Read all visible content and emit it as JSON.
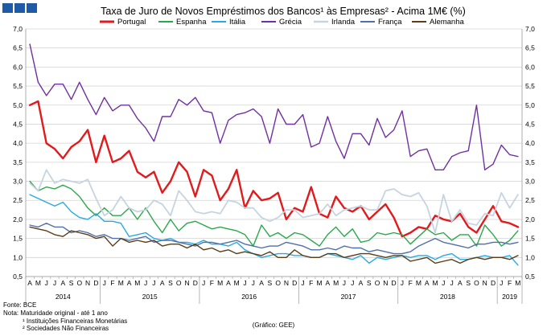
{
  "chart_data": {
    "type": "line",
    "title": "Taxa de Juro de Novos Empréstimos dos Bancos¹ às Empresas² - Acima 1M€ (%)",
    "ylim": [
      0.5,
      7.0
    ],
    "y_ticks": [
      "0,5",
      "1,0",
      "1,5",
      "2,0",
      "2,5",
      "3,0",
      "3,5",
      "4,0",
      "4,5",
      "5,0",
      "5,5",
      "6,0",
      "6,5",
      "7,0"
    ],
    "grid": true,
    "legend_position": "top",
    "month_labels": [
      "A",
      "M",
      "J",
      "J",
      "A",
      "S",
      "O",
      "N",
      "D",
      "J",
      "F",
      "M",
      "A",
      "M",
      "J",
      "J",
      "A",
      "S",
      "O",
      "N",
      "D",
      "J",
      "F",
      "M",
      "A",
      "M",
      "J",
      "J",
      "A",
      "S",
      "O",
      "N",
      "D",
      "J",
      "F",
      "M",
      "A",
      "M",
      "J",
      "J",
      "A",
      "S",
      "O",
      "N",
      "D",
      "J",
      "F",
      "M",
      "A",
      "M",
      "J",
      "J",
      "A",
      "S",
      "O",
      "N",
      "D",
      "J",
      "F",
      "M"
    ],
    "years": [
      {
        "label": "2014",
        "start": 0,
        "end": 8
      },
      {
        "label": "2015",
        "start": 9,
        "end": 20
      },
      {
        "label": "2016",
        "start": 21,
        "end": 32
      },
      {
        "label": "2017",
        "start": 33,
        "end": 44
      },
      {
        "label": "2018",
        "start": 45,
        "end": 56
      },
      {
        "label": "2019",
        "start": 57,
        "end": 59
      }
    ],
    "series": [
      {
        "name": "Portugal",
        "color": "#e31a1c",
        "width": 2.4,
        "values": [
          5.0,
          5.1,
          4.0,
          3.85,
          3.6,
          3.9,
          4.05,
          4.35,
          3.5,
          4.2,
          3.5,
          3.6,
          3.8,
          3.25,
          3.1,
          3.25,
          2.7,
          3.0,
          3.5,
          3.25,
          2.6,
          3.3,
          3.15,
          2.5,
          2.8,
          3.3,
          2.3,
          2.75,
          2.5,
          2.55,
          2.7,
          2.0,
          2.3,
          2.2,
          2.85,
          2.15,
          2.05,
          2.6,
          2.3,
          2.2,
          2.35,
          2.0,
          2.2,
          2.4,
          2.05,
          1.55,
          1.65,
          1.8,
          1.75,
          2.1,
          2.0,
          1.95,
          2.15,
          1.8,
          1.65,
          2.0,
          2.35,
          1.95,
          1.9,
          1.8
        ]
      },
      {
        "name": "Espanha",
        "color": "#2aa84a",
        "width": 1.4,
        "values": [
          3.0,
          2.75,
          2.85,
          2.8,
          2.9,
          2.8,
          2.6,
          2.3,
          2.1,
          2.3,
          2.1,
          2.1,
          2.3,
          2.0,
          2.3,
          1.95,
          1.65,
          2.0,
          1.7,
          1.9,
          1.95,
          1.85,
          1.75,
          1.8,
          1.75,
          1.7,
          1.6,
          1.3,
          1.85,
          1.55,
          1.65,
          1.5,
          1.65,
          1.6,
          1.45,
          1.3,
          1.6,
          1.8,
          1.55,
          1.75,
          1.4,
          1.45,
          1.65,
          1.6,
          1.65,
          1.6,
          1.35,
          1.55,
          1.75,
          1.6,
          1.65,
          1.45,
          1.6,
          1.6,
          1.3,
          1.85,
          1.6,
          1.3,
          1.45,
          1.7
        ]
      },
      {
        "name": "Itália",
        "color": "#29a9e0",
        "width": 1.4,
        "values": [
          2.65,
          2.55,
          2.45,
          2.35,
          2.45,
          2.2,
          2.05,
          2.0,
          2.15,
          1.95,
          1.95,
          1.9,
          1.55,
          1.6,
          1.65,
          1.5,
          1.45,
          1.5,
          1.4,
          1.4,
          1.35,
          1.45,
          1.35,
          1.35,
          1.3,
          1.4,
          1.2,
          1.1,
          1.0,
          1.05,
          1.1,
          1.1,
          1.05,
          1.05,
          1.0,
          1.0,
          1.1,
          1.05,
          1.0,
          0.95,
          1.05,
          0.85,
          1.0,
          0.95,
          1.0,
          1.05,
          1.0,
          1.05,
          1.05,
          0.95,
          1.05,
          1.1,
          0.95,
          0.95,
          1.0,
          1.05,
          1.0,
          1.0,
          1.05,
          0.8
        ]
      },
      {
        "name": "Grécia",
        "color": "#7030a0",
        "width": 1.4,
        "values": [
          6.6,
          5.6,
          5.25,
          5.55,
          5.55,
          5.15,
          5.6,
          5.15,
          4.75,
          5.2,
          4.85,
          5.0,
          5.0,
          4.65,
          4.4,
          4.05,
          4.7,
          4.7,
          5.15,
          5.0,
          5.2,
          4.85,
          4.8,
          4.0,
          4.6,
          4.75,
          4.8,
          4.9,
          4.7,
          4.0,
          4.9,
          4.5,
          4.5,
          4.75,
          3.9,
          4.0,
          4.7,
          4.05,
          3.6,
          4.25,
          4.25,
          3.95,
          4.65,
          4.15,
          4.35,
          4.85,
          3.65,
          3.8,
          3.85,
          3.3,
          3.3,
          3.65,
          3.75,
          3.8,
          5.0,
          3.3,
          3.45,
          3.95,
          3.7,
          3.65
        ]
      },
      {
        "name": "Irlanda",
        "color": "#c6d4e1",
        "width": 1.8,
        "values": [
          2.95,
          2.75,
          3.3,
          2.95,
          3.05,
          3.0,
          2.95,
          3.05,
          2.55,
          2.1,
          2.25,
          2.6,
          2.3,
          2.2,
          2.25,
          2.5,
          2.4,
          2.1,
          2.75,
          2.5,
          2.2,
          2.15,
          2.2,
          2.15,
          2.5,
          2.45,
          2.3,
          2.3,
          2.05,
          1.95,
          2.05,
          2.25,
          2.25,
          2.05,
          2.1,
          2.15,
          2.4,
          2.1,
          2.25,
          2.3,
          2.35,
          2.25,
          2.25,
          2.75,
          2.8,
          2.65,
          2.6,
          2.7,
          2.35,
          1.65,
          2.65,
          1.95,
          2.25,
          1.9,
          1.85,
          2.15,
          2.1,
          2.7,
          2.3,
          2.65
        ]
      },
      {
        "name": "França",
        "color": "#4f6fa8",
        "width": 1.4,
        "values": [
          1.85,
          1.8,
          1.9,
          1.8,
          1.8,
          1.65,
          1.7,
          1.65,
          1.55,
          1.6,
          1.5,
          1.5,
          1.45,
          1.5,
          1.55,
          1.4,
          1.45,
          1.45,
          1.4,
          1.35,
          1.3,
          1.4,
          1.4,
          1.35,
          1.4,
          1.45,
          1.35,
          1.3,
          1.25,
          1.3,
          1.3,
          1.4,
          1.35,
          1.3,
          1.2,
          1.2,
          1.25,
          1.2,
          1.3,
          1.25,
          1.25,
          1.15,
          1.2,
          1.15,
          1.1,
          1.1,
          1.15,
          1.3,
          1.4,
          1.5,
          1.4,
          1.35,
          1.3,
          1.25,
          1.35,
          1.35,
          1.4,
          1.4,
          1.35,
          1.4
        ]
      },
      {
        "name": "Alemanha",
        "color": "#5a3d16",
        "width": 1.4,
        "values": [
          1.8,
          1.75,
          1.7,
          1.6,
          1.55,
          1.7,
          1.65,
          1.6,
          1.5,
          1.55,
          1.3,
          1.5,
          1.4,
          1.45,
          1.4,
          1.45,
          1.3,
          1.35,
          1.35,
          1.25,
          1.35,
          1.2,
          1.25,
          1.15,
          1.2,
          1.1,
          1.15,
          1.1,
          1.05,
          1.15,
          1.0,
          1.0,
          1.2,
          1.05,
          1.0,
          1.0,
          1.1,
          1.1,
          1.0,
          1.05,
          1.1,
          1.1,
          1.05,
          1.0,
          1.05,
          1.05,
          0.9,
          0.95,
          1.0,
          0.85,
          0.9,
          0.95,
          0.85,
          0.95,
          1.0,
          0.95,
          1.0,
          1.0,
          0.95,
          1.05
        ]
      }
    ],
    "notes": {
      "source": "Fonte: BCE",
      "note": "Nota: Maturidade original - até 1 ano",
      "footnote1": "¹ Instituições Financeiras Monetárias",
      "footnote2": "² Sociedades Não Financeiras",
      "credit": "(Gráfico: GEE)"
    }
  }
}
